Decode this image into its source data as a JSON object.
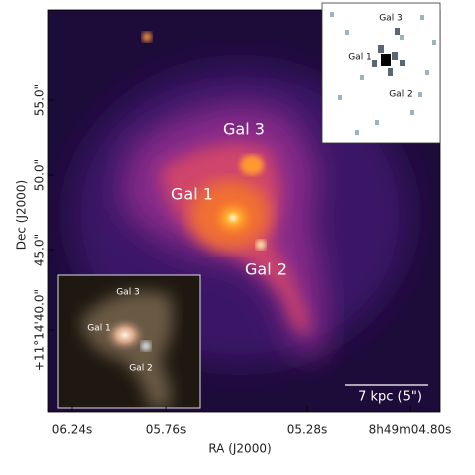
{
  "axes": {
    "x_label": "RA (J2000)",
    "x_ticks": [
      "06.24s",
      "05.76s",
      "05.28s",
      "8h49m04.80s"
    ],
    "y_label": "Dec (J2000)",
    "y_ticks": [
      "55.0\"",
      "50.0\"",
      "45.0\"",
      "+11°14'40.0\""
    ]
  },
  "main_image": {
    "annotations": [
      "Gal 3",
      "Gal 1",
      "Gal 2"
    ],
    "scale_bar": "7 kpc (5\")"
  },
  "inset_top_right": {
    "labels": [
      "Gal 3",
      "Gal 1",
      "Gal 2"
    ]
  },
  "inset_bottom_left": {
    "labels": [
      "Gal 3",
      "Gal 1",
      "Gal 2"
    ]
  }
}
